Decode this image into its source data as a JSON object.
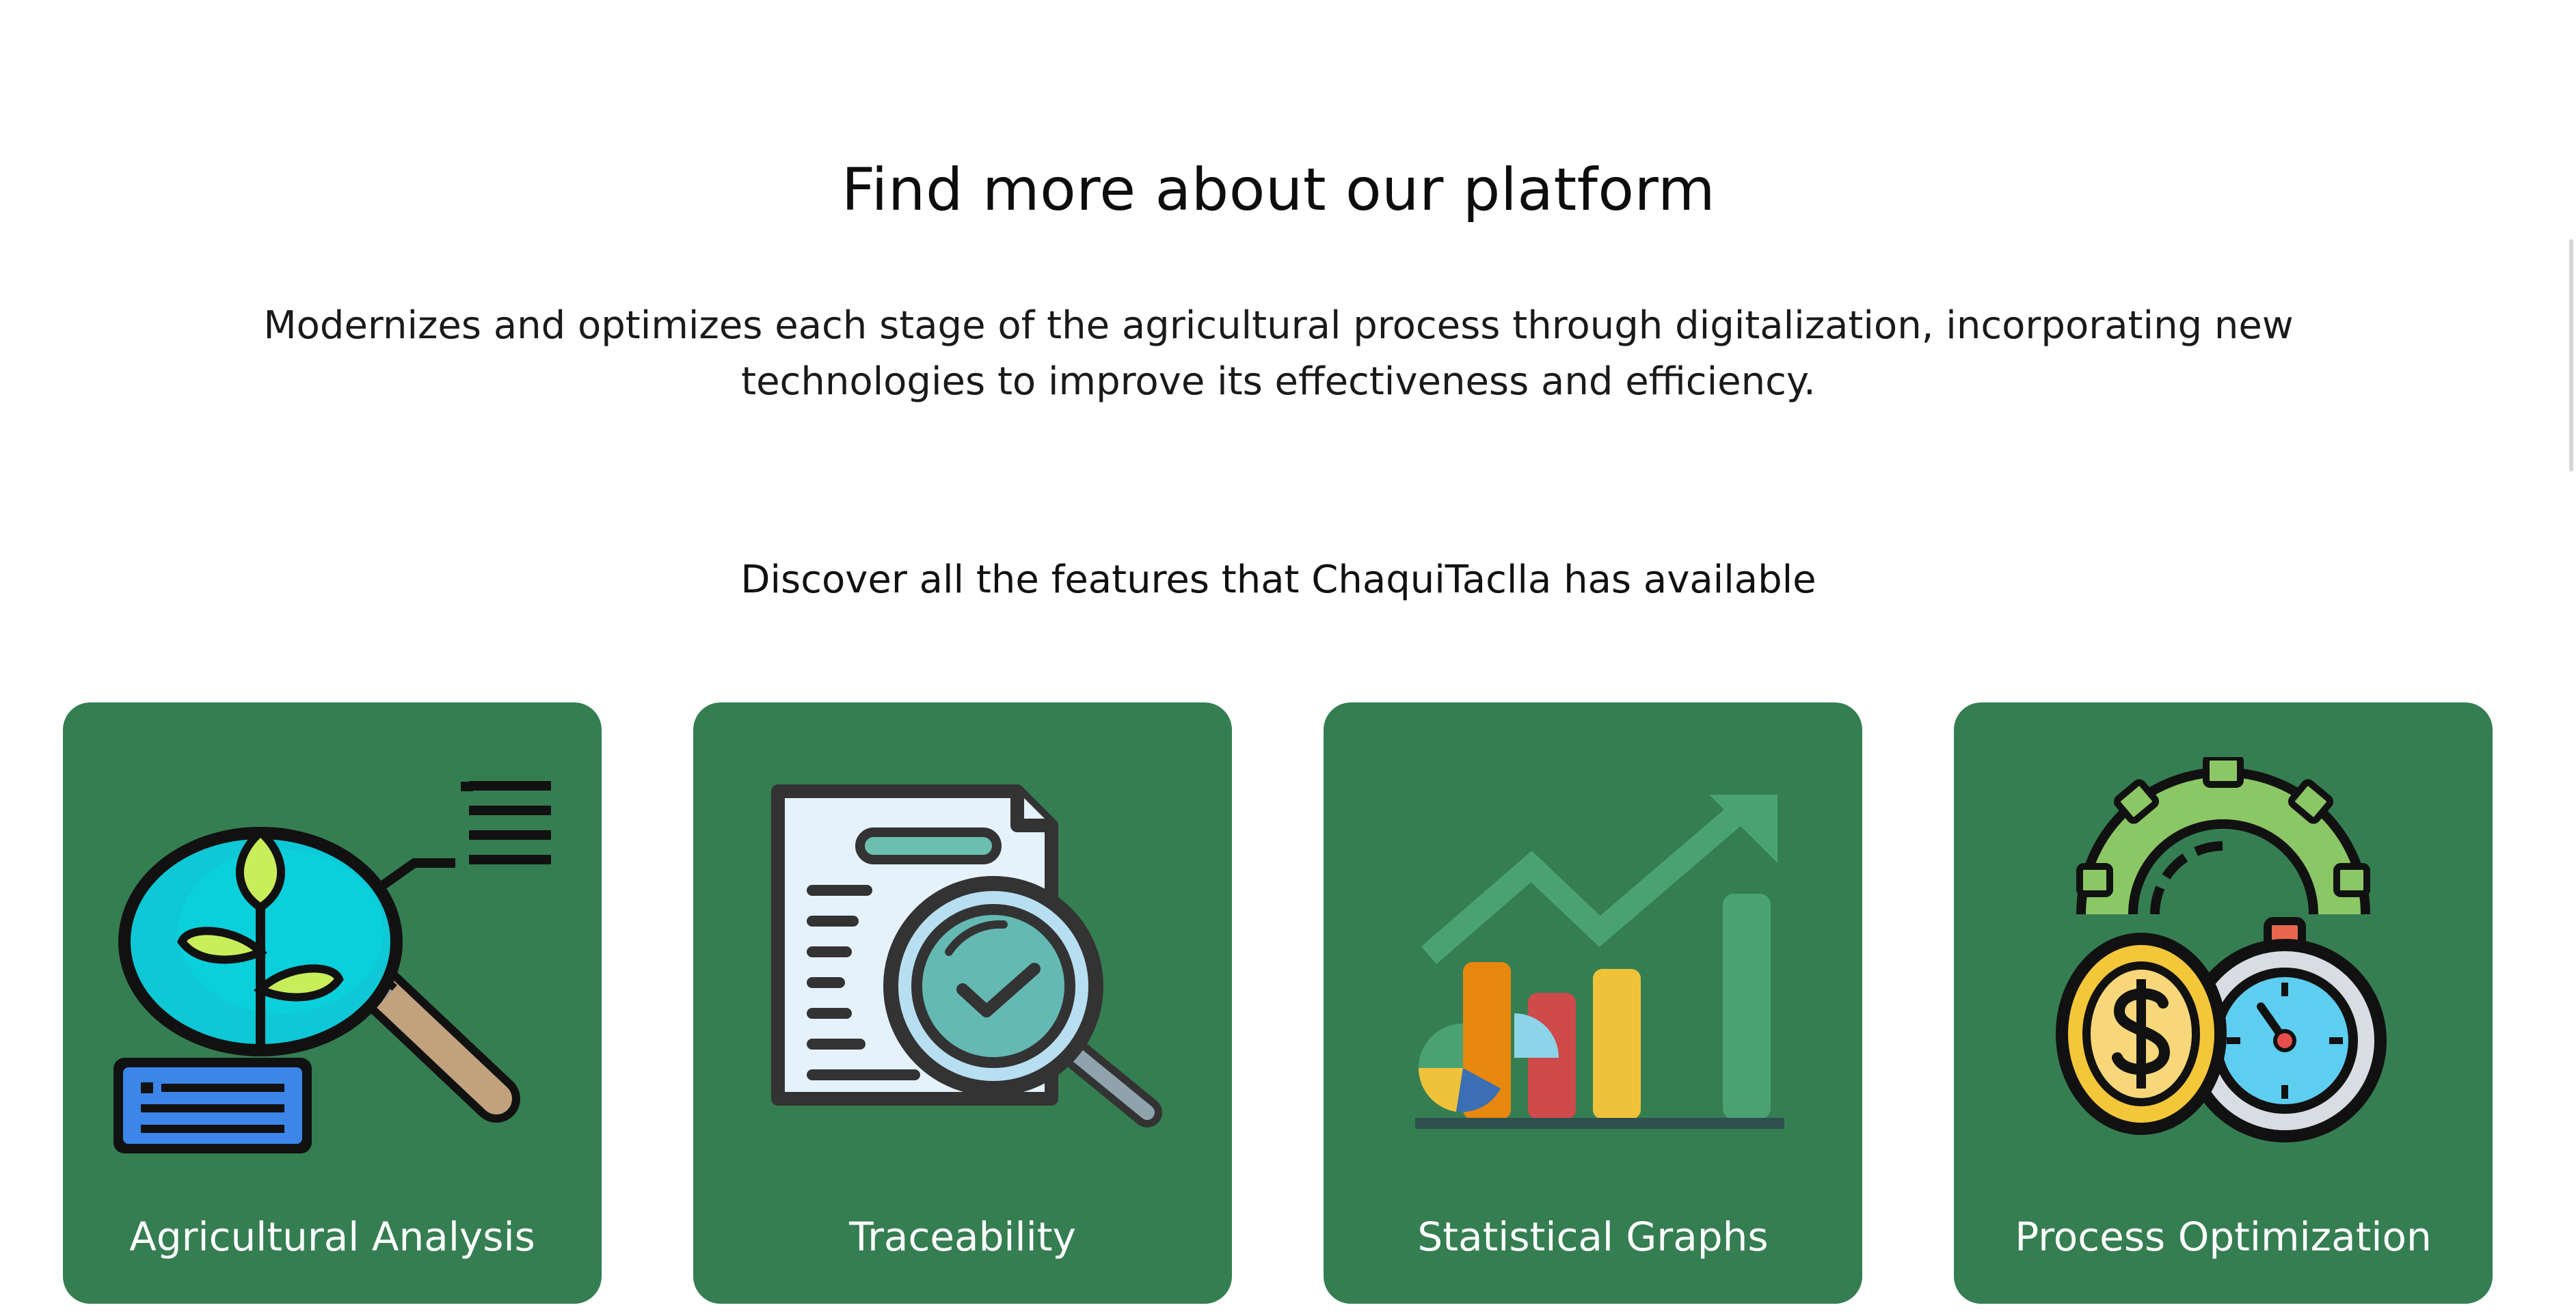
{
  "section": {
    "heading": "Find more about our platform",
    "intro": "Modernizes and optimizes each stage of the agricultural process through digitalization, incorporating new technologies to improve its effectiveness and efficiency.",
    "subheading": "Discover all the features that ChaquiTaclla has available"
  },
  "colors": {
    "card_background": "#357e52",
    "label_text": "#ffffff"
  },
  "features": [
    {
      "label": "Agricultural Analysis",
      "icon": "magnifier-plant-icon"
    },
    {
      "label": "Traceability",
      "icon": "document-search-icon"
    },
    {
      "label": "Statistical Graphs",
      "icon": "bar-chart-trend-icon"
    },
    {
      "label": "Process Optimization",
      "icon": "coin-stopwatch-icon"
    }
  ]
}
